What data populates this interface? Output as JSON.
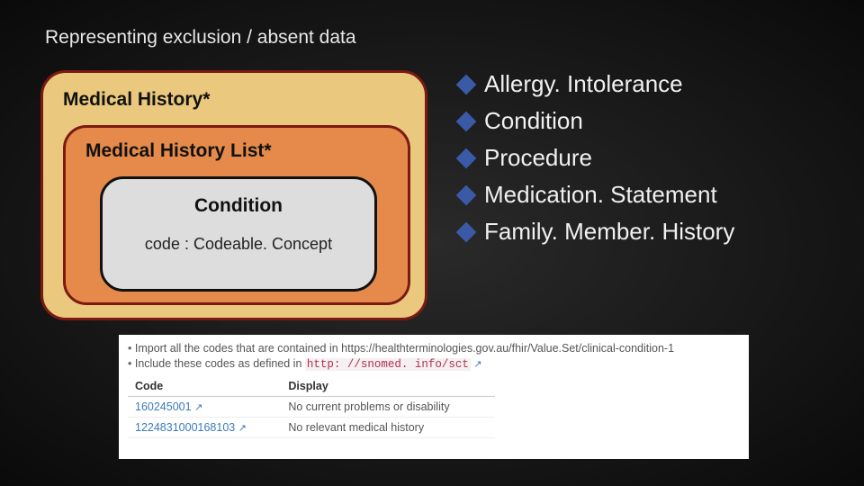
{
  "title": "Representing exclusion / absent data",
  "diagram": {
    "outer": "Medical History*",
    "middle": "Medical History List*",
    "inner_title": "Condition",
    "inner_sub": "code : Codeable. Concept",
    "outer_bg": "#eac87d",
    "middle_bg": "#e58a4a",
    "inner_bg": "#dddddd",
    "outer_border": "#7a1a12",
    "inner_border": "#111111"
  },
  "bullets": {
    "diamond_color": "#3a5aa8",
    "items": [
      "Allergy. Intolerance",
      "Condition",
      "Procedure",
      "Medication. Statement",
      "Family. Member. History"
    ]
  },
  "snippet": {
    "line1_prefix": "Import all the codes that are contained in ",
    "line1_url": "https://healthterminologies.gov.au/fhir/Value.Set/clinical-condition-1",
    "line2_prefix": "Include these codes as defined in ",
    "line2_url": "http: //snomed. info/sct",
    "th_code": "Code",
    "th_display": "Display",
    "rows": [
      {
        "code": "160245001",
        "display": "No current problems or disability"
      },
      {
        "code": "1224831000168103",
        "display": "No relevant medical history"
      }
    ]
  }
}
